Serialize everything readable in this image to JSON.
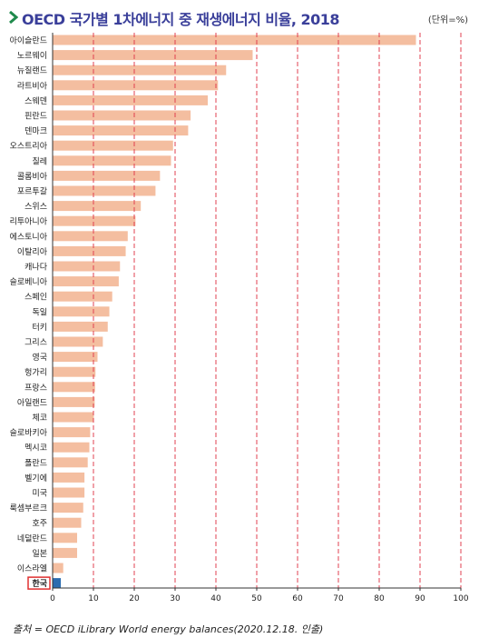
{
  "header": {
    "title": "OECD 국가별 1차에너지 중 재생에너지 비율, 2018",
    "unit": "(단위=%)"
  },
  "source": "출처 = OECD iLibrary World energy balances(2020.12.18. 인출)",
  "colors": {
    "bar": "#f4bea0",
    "highlight_bar": "#2b6cb0",
    "highlight_box": "#e03030",
    "gridline": "#e04050",
    "title": "#3a3f9a",
    "arrow": "#1f8a4c"
  },
  "chart_data": {
    "type": "bar",
    "orientation": "horizontal",
    "categories": [
      "아이슬란드",
      "노르웨이",
      "뉴질랜드",
      "라트비아",
      "스웨덴",
      "핀란드",
      "덴마크",
      "오스트리아",
      "칠레",
      "콜롬비아",
      "포르투갈",
      "스위스",
      "리투아니아",
      "에스토니아",
      "이탈리아",
      "캐나다",
      "슬로베니아",
      "스페인",
      "독일",
      "터키",
      "그리스",
      "영국",
      "헝가리",
      "프랑스",
      "아일랜드",
      "체코",
      "슬로바키아",
      "멕시코",
      "폴란드",
      "벨기에",
      "미국",
      "룩셈부르크",
      "호주",
      "네덜란드",
      "일본",
      "이스라엘",
      "한국"
    ],
    "values": [
      89.0,
      49.0,
      42.5,
      40.5,
      38.0,
      33.8,
      33.2,
      29.5,
      29.0,
      26.3,
      25.2,
      21.6,
      20.3,
      18.4,
      17.9,
      16.5,
      16.2,
      14.6,
      13.9,
      13.5,
      12.3,
      11.0,
      10.5,
      10.4,
      10.3,
      10.1,
      9.2,
      9.0,
      8.6,
      7.8,
      7.8,
      7.5,
      7.0,
      6.0,
      6.0,
      2.6,
      2.0
    ],
    "highlight": "한국",
    "xlim": [
      0,
      100
    ],
    "xticks": [
      0,
      10,
      20,
      30,
      40,
      50,
      60,
      70,
      80,
      90,
      100
    ],
    "grid": true
  }
}
